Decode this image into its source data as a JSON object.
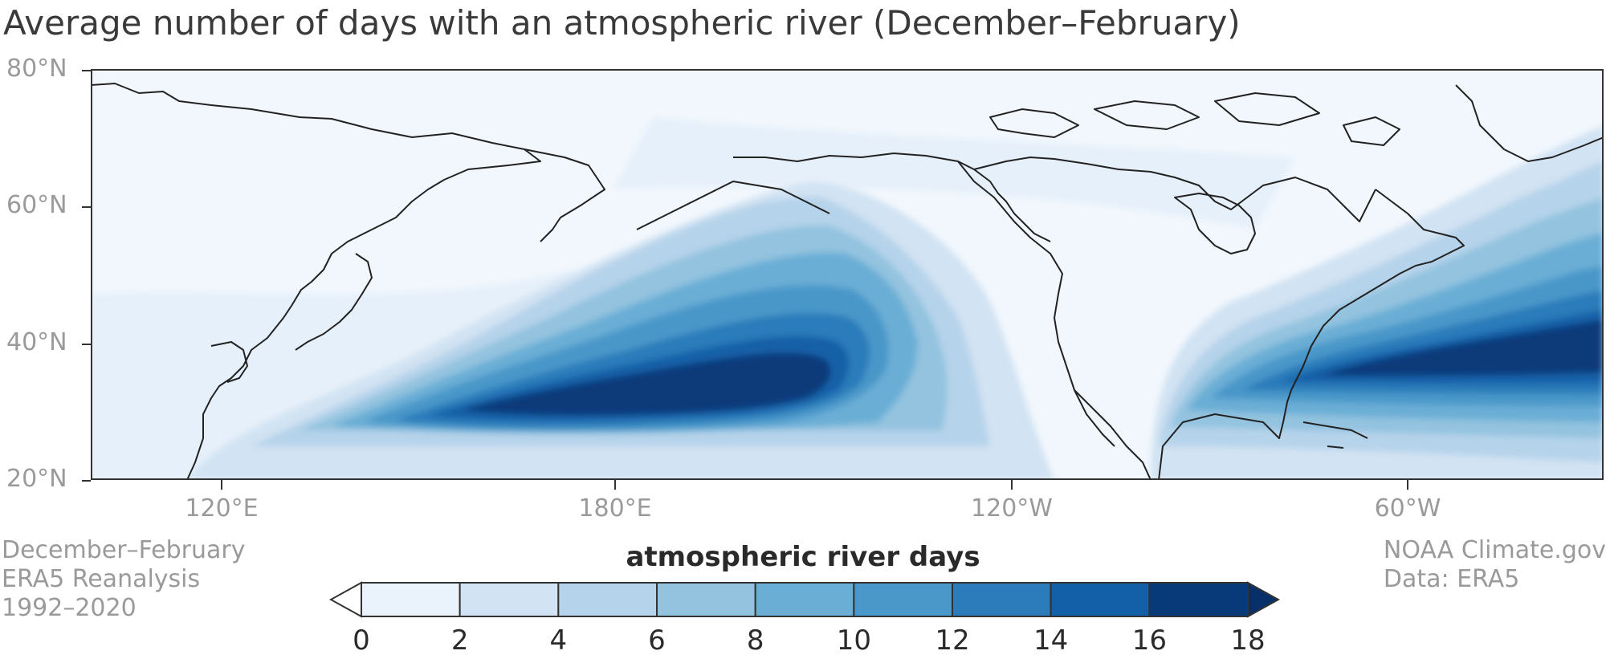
{
  "title": "Average number of days with an atmospheric river (December–February)",
  "map": {
    "lat_labels": [
      "80°N",
      "60°N",
      "40°N",
      "20°N"
    ],
    "lon_labels": [
      "120°E",
      "180°E",
      "120°W",
      "60°W"
    ]
  },
  "notes_left": [
    "December–February",
    "ERA5 Reanalysis",
    "1992–2020"
  ],
  "notes_right": [
    "NOAA Climate.gov",
    "Data: ERA5"
  ],
  "legend": {
    "title": "atmospheric river days",
    "ticks": [
      "0",
      "2",
      "4",
      "6",
      "8",
      "10",
      "12",
      "14",
      "16",
      "18"
    ],
    "colors": [
      "#eaf2fb",
      "#d2e3f3",
      "#b5d3ea",
      "#93c3df",
      "#6aaed6",
      "#4a97c9",
      "#2c7bba",
      "#1460a8",
      "#083a7a"
    ],
    "under_color": "#ffffff",
    "over_color": "#083068"
  }
}
